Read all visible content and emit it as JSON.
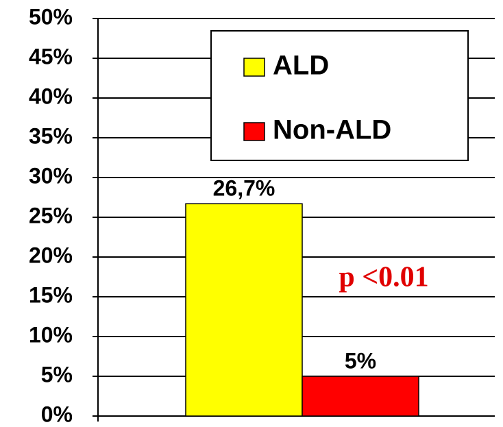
{
  "chart_data": {
    "type": "bar",
    "categories": [
      null
    ],
    "series": [
      {
        "name": "ALD",
        "color": "#ffff00",
        "values": [
          26.7
        ],
        "value_labels": [
          "26,7%"
        ]
      },
      {
        "name": "Non-ALD",
        "color": "#ff0000",
        "values": [
          5
        ],
        "value_labels": [
          "5%"
        ]
      }
    ],
    "ylim": [
      0,
      50
    ],
    "yticks": [
      {
        "value": 0,
        "label": "0%"
      },
      {
        "value": 5,
        "label": "5%"
      },
      {
        "value": 10,
        "label": "10%"
      },
      {
        "value": 15,
        "label": "15%"
      },
      {
        "value": 20,
        "label": "20%"
      },
      {
        "value": 25,
        "label": "25%"
      },
      {
        "value": 30,
        "label": "30%"
      },
      {
        "value": 35,
        "label": "35%"
      },
      {
        "value": 40,
        "label": "40%"
      },
      {
        "value": 45,
        "label": "45%"
      },
      {
        "value": 50,
        "label": "50%"
      }
    ],
    "grid": true,
    "legend": "top-right",
    "annotation": {
      "text": "p <0.01",
      "color": "#e00000"
    }
  }
}
